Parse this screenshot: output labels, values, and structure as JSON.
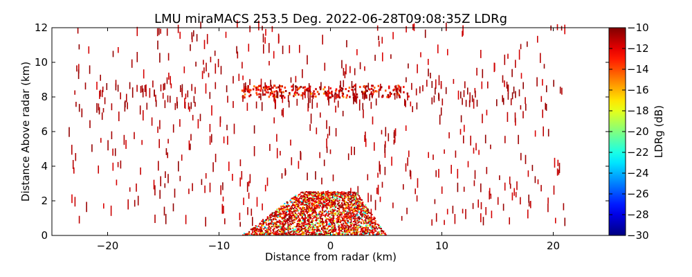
{
  "chart_data": {
    "type": "heatmap",
    "title": "LMU miraMACS 253.5 Deg. 2022-06-28T09:08:35Z  LDRg",
    "xlabel": "Distance from radar (km)",
    "ylabel": "Distance Above radar  (km)",
    "xlim": [
      -25,
      25
    ],
    "ylim": [
      0,
      12
    ],
    "xticks": [
      "−20",
      "−10",
      "0",
      "10",
      "20"
    ],
    "xtick_values": [
      -20,
      -10,
      0,
      10,
      20
    ],
    "yticks": [
      "0",
      "2",
      "4",
      "6",
      "8",
      "10",
      "12"
    ],
    "ytick_values": [
      0,
      2,
      4,
      6,
      8,
      10,
      12
    ],
    "colorbar": {
      "label": "LDRg (dB)",
      "range": [
        -30,
        -10
      ],
      "ticks": [
        "−30",
        "−28",
        "−26",
        "−24",
        "−22",
        "−20",
        "−18",
        "−16",
        "−14",
        "−12",
        "−10"
      ],
      "tick_values": [
        -30,
        -28,
        -26,
        -24,
        -22,
        -20,
        -18,
        -16,
        -14,
        -12,
        -10
      ],
      "colormap": "jet"
    },
    "features": [
      {
        "kind": "dense_low_layer",
        "x_range": [
          -9,
          6
        ],
        "y_range": [
          0,
          2.5
        ],
        "ldr_range": [
          -24,
          -10
        ]
      },
      {
        "kind": "layer_near_8km",
        "x_range": [
          -8,
          7
        ],
        "y_range": [
          7.9,
          8.6
        ],
        "ldr_range": [
          -16,
          -10
        ]
      },
      {
        "kind": "sparse_scatter",
        "x_range": [
          -23.5,
          21
        ],
        "y_range": [
          0,
          12
        ],
        "ldr_value": -10
      }
    ]
  }
}
